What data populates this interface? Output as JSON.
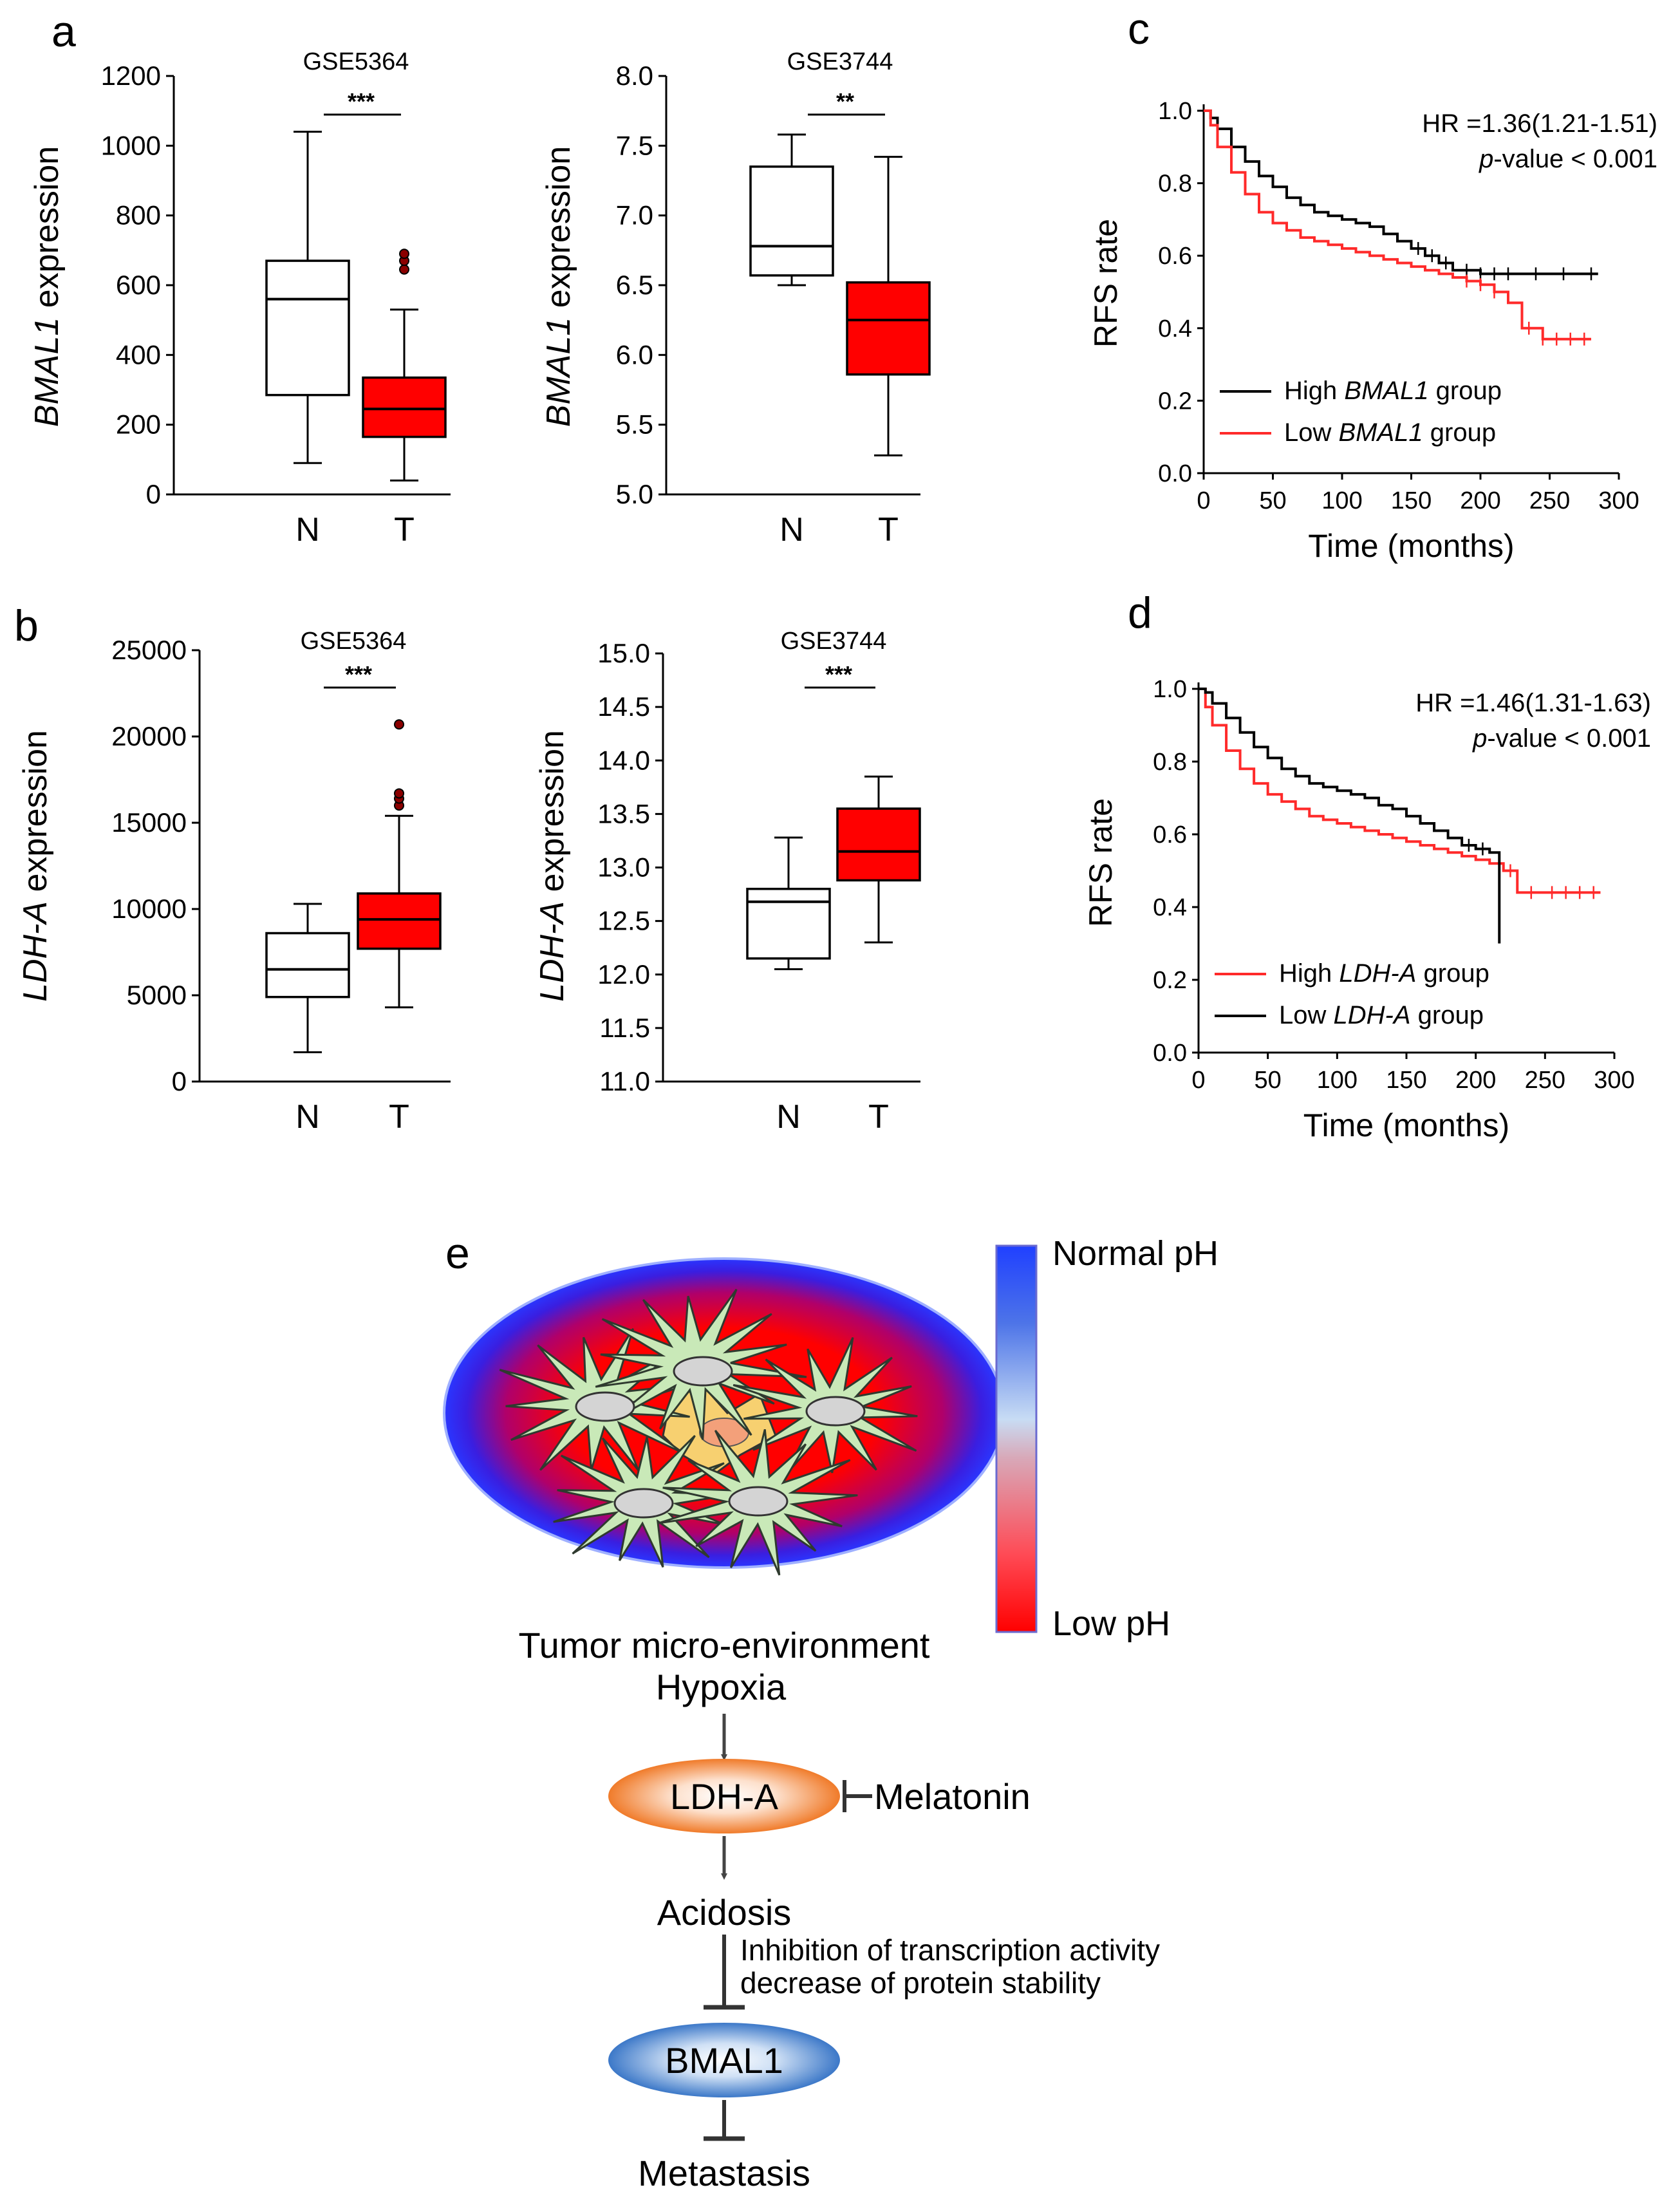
{
  "panel_labels": {
    "a": "a",
    "b": "b",
    "c": "c",
    "d": "d",
    "e": "e"
  },
  "colors": {
    "normal_box": "#ffffff",
    "tumor_box": "#ff0000",
    "km_black": "#000000",
    "km_red": "#ff2a2a",
    "outlier": "#8b0000"
  },
  "chart_data": [
    {
      "id": "a_left",
      "type": "box",
      "title": "GSE5364",
      "ylabel_italic": "BMAL1",
      "ylabel_rest": " expression",
      "yticks": [
        "0",
        "200",
        "400",
        "600",
        "800",
        "1000",
        "1200"
      ],
      "ylim": [
        0,
        1200
      ],
      "categories": [
        "N",
        "T"
      ],
      "boxes": [
        {
          "name": "N",
          "min": 90,
          "q1": 285,
          "median": 560,
          "q3": 670,
          "max": 1040,
          "outliers": []
        },
        {
          "name": "T",
          "min": 40,
          "q1": 165,
          "median": 245,
          "q3": 335,
          "max": 530,
          "outliers": [
            645,
            670,
            690
          ]
        }
      ],
      "significance": "***"
    },
    {
      "id": "a_right",
      "type": "box",
      "title": "GSE3744",
      "ylabel_italic": "BMAL1",
      "ylabel_rest": " expression",
      "yticks": [
        "5.0",
        "5.5",
        "6.0",
        "6.5",
        "7.0",
        "7.5",
        "8.0"
      ],
      "ylim": [
        5.0,
        8.0
      ],
      "categories": [
        "N",
        "T"
      ],
      "boxes": [
        {
          "name": "N",
          "min": 6.5,
          "q1": 6.57,
          "median": 6.78,
          "q3": 7.35,
          "max": 7.58,
          "outliers": []
        },
        {
          "name": "T",
          "min": 5.28,
          "q1": 5.86,
          "median": 6.25,
          "q3": 6.52,
          "max": 7.42,
          "outliers": []
        }
      ],
      "significance": "**"
    },
    {
      "id": "b_left",
      "type": "box",
      "title": "GSE5364",
      "ylabel_italic": "LDH-A",
      "ylabel_rest": " expression",
      "yticks": [
        "0",
        "5000",
        "10000",
        "15000",
        "20000",
        "25000"
      ],
      "ylim": [
        0,
        25000
      ],
      "categories": [
        "N",
        "T"
      ],
      "boxes": [
        {
          "name": "N",
          "min": 1700,
          "q1": 4900,
          "median": 6500,
          "q3": 8600,
          "max": 10300,
          "outliers": []
        },
        {
          "name": "T",
          "min": 4300,
          "q1": 7700,
          "median": 9400,
          "q3": 10900,
          "max": 15400,
          "outliers": [
            16000,
            16400,
            16700,
            20700
          ]
        }
      ],
      "significance": "***"
    },
    {
      "id": "b_right",
      "type": "box",
      "title": "GSE3744",
      "ylabel_italic": "LDH-A",
      "ylabel_rest": " expression",
      "yticks": [
        "11.0",
        "11.5",
        "12.0",
        "12.5",
        "13.0",
        "13.5",
        "14.0",
        "14.5",
        "15.0"
      ],
      "ylim": [
        11.0,
        15.0
      ],
      "categories": [
        "N",
        "T"
      ],
      "boxes": [
        {
          "name": "N",
          "min": 12.05,
          "q1": 12.15,
          "median": 12.68,
          "q3": 12.8,
          "max": 13.28,
          "outliers": []
        },
        {
          "name": "T",
          "min": 12.3,
          "q1": 12.88,
          "median": 13.15,
          "q3": 13.55,
          "max": 13.85,
          "outliers": []
        }
      ],
      "significance": "***"
    },
    {
      "id": "c",
      "type": "line",
      "ylabel": "RFS rate",
      "xlabel": "Time (months)",
      "yticks": [
        "0.0",
        "0.2",
        "0.4",
        "0.6",
        "0.8",
        "1.0"
      ],
      "xticks": [
        "0",
        "50",
        "100",
        "150",
        "200",
        "250",
        "300"
      ],
      "xlim": [
        0,
        300
      ],
      "ylim": [
        0,
        1.0
      ],
      "hr_text": "HR =1.36(1.21-1.51)",
      "p_italic": "p",
      "p_rest": "-value < 0.001",
      "series": [
        {
          "name_pre": "High ",
          "name_italic": "BMAL1",
          "name_post": " group",
          "color": "#000000",
          "x": [
            0,
            5,
            10,
            20,
            30,
            40,
            50,
            60,
            70,
            80,
            90,
            100,
            110,
            120,
            130,
            140,
            150,
            160,
            170,
            180,
            200,
            230,
            260,
            285
          ],
          "y": [
            1.0,
            0.98,
            0.95,
            0.9,
            0.86,
            0.82,
            0.79,
            0.76,
            0.74,
            0.72,
            0.71,
            0.7,
            0.69,
            0.68,
            0.66,
            0.64,
            0.62,
            0.6,
            0.58,
            0.56,
            0.55,
            0.55,
            0.55,
            0.55
          ],
          "censor_x": [
            155,
            165,
            175,
            190,
            200,
            210,
            220,
            240,
            260,
            280
          ]
        },
        {
          "name_pre": "Low ",
          "name_italic": "BMAL1",
          "name_post": " group",
          "color": "#ff2a2a",
          "x": [
            0,
            5,
            10,
            20,
            30,
            40,
            50,
            60,
            70,
            80,
            90,
            100,
            110,
            120,
            130,
            140,
            150,
            160,
            170,
            180,
            190,
            200,
            210,
            220,
            230,
            245,
            260,
            280
          ],
          "y": [
            1.0,
            0.96,
            0.9,
            0.83,
            0.77,
            0.72,
            0.69,
            0.67,
            0.65,
            0.64,
            0.63,
            0.62,
            0.61,
            0.6,
            0.59,
            0.58,
            0.57,
            0.56,
            0.55,
            0.54,
            0.53,
            0.52,
            0.5,
            0.47,
            0.4,
            0.37,
            0.37,
            0.37
          ],
          "censor_x": [
            190,
            200,
            210,
            235,
            245,
            255,
            265,
            275
          ]
        }
      ]
    },
    {
      "id": "d",
      "type": "line",
      "ylabel": "RFS rate",
      "xlabel": "Time (months)",
      "yticks": [
        "0.0",
        "0.2",
        "0.4",
        "0.6",
        "0.8",
        "1.0"
      ],
      "xticks": [
        "0",
        "50",
        "100",
        "150",
        "200",
        "250",
        "300"
      ],
      "xlim": [
        0,
        300
      ],
      "ylim": [
        0,
        1.0
      ],
      "hr_text": "HR =1.46(1.31-1.63)",
      "p_italic": "p",
      "p_rest": "-value < 0.001",
      "series": [
        {
          "name_pre": "High ",
          "name_italic": "LDH-A",
          "name_post": " group",
          "color": "#ff2a2a",
          "x": [
            0,
            5,
            10,
            20,
            30,
            40,
            50,
            60,
            70,
            80,
            90,
            100,
            110,
            120,
            130,
            140,
            150,
            160,
            170,
            180,
            190,
            200,
            210,
            220,
            230,
            260,
            290
          ],
          "y": [
            1.0,
            0.95,
            0.9,
            0.83,
            0.78,
            0.74,
            0.71,
            0.69,
            0.67,
            0.65,
            0.64,
            0.63,
            0.62,
            0.61,
            0.6,
            0.59,
            0.58,
            0.57,
            0.56,
            0.55,
            0.54,
            0.53,
            0.52,
            0.5,
            0.44,
            0.44,
            0.44
          ],
          "censor_x": [
            225,
            240,
            255,
            265,
            275,
            285
          ]
        },
        {
          "name_pre": "Low ",
          "name_italic": "LDH-A",
          "name_post": " group",
          "color": "#000000",
          "x": [
            0,
            5,
            10,
            20,
            30,
            40,
            50,
            60,
            70,
            80,
            90,
            100,
            110,
            120,
            130,
            140,
            150,
            160,
            170,
            180,
            190,
            200,
            210,
            217,
            217
          ],
          "y": [
            1.0,
            0.99,
            0.96,
            0.92,
            0.88,
            0.84,
            0.81,
            0.78,
            0.76,
            0.74,
            0.73,
            0.72,
            0.71,
            0.7,
            0.68,
            0.67,
            0.65,
            0.63,
            0.61,
            0.59,
            0.57,
            0.56,
            0.55,
            0.55,
            0.3
          ],
          "censor_x": [
            195,
            205
          ]
        }
      ]
    }
  ],
  "diagram": {
    "scale_top": "Normal pH",
    "scale_bottom": "Low pH",
    "tumor_label": "Tumor micro-environment",
    "hypoxia": "Hypoxia",
    "ldha": "LDH-A",
    "melatonin": "Melatonin",
    "acidosis": "Acidosis",
    "mech_line1": "Inhibition of transcription activity",
    "mech_line2": "decrease of protein stability",
    "bmal1": "BMAL1",
    "metastasis": "Metastasis"
  }
}
